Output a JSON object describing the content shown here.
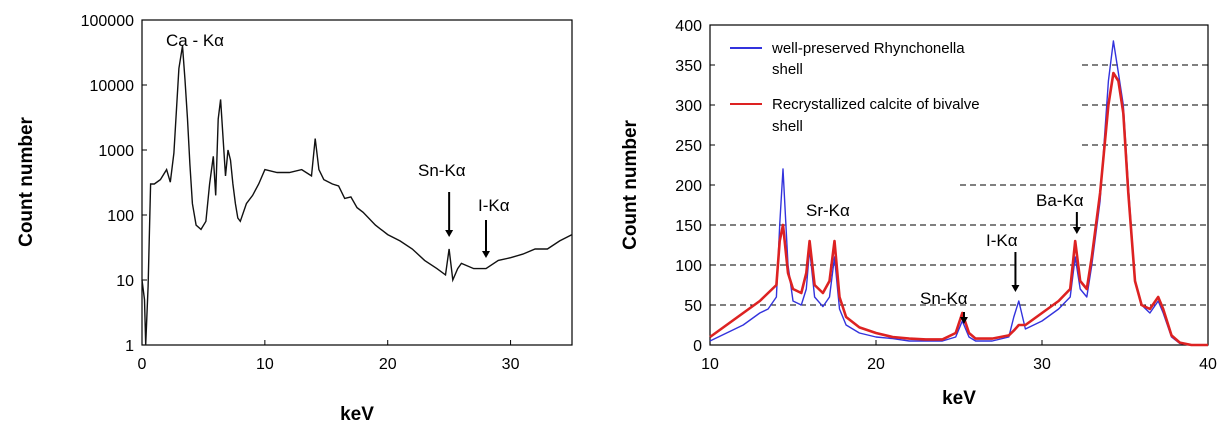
{
  "chart_data": [
    {
      "type": "line",
      "xlabel": "keV",
      "ylabel": "Count number",
      "xlim": [
        0,
        35
      ],
      "ylim": [
        1,
        100000
      ],
      "yscale": "log",
      "x_ticks": [
        "0",
        "10",
        "20",
        "30"
      ],
      "y_ticks": [
        "1",
        "10",
        "100",
        "1000",
        "10000",
        "100000"
      ],
      "grid": false,
      "line_color": "#111111",
      "annotations": [
        {
          "text": "Ca - Kα",
          "arrow": false
        },
        {
          "text": "Sn-Kα",
          "x": 25,
          "arrow": true
        },
        {
          "text": "I-Kα",
          "x": 28,
          "arrow": true
        }
      ],
      "series": [
        {
          "x": [
            0,
            0.2,
            0.3,
            0.5,
            0.7,
            1.0,
            1.5,
            2.0,
            2.3,
            2.6,
            3.0,
            3.3,
            3.5,
            3.7,
            3.9,
            4.1,
            4.4,
            4.8,
            5.2,
            5.5,
            5.8,
            6.0,
            6.2,
            6.4,
            6.6,
            6.8,
            7.0,
            7.2,
            7.4,
            7.6,
            7.8,
            8.0,
            8.5,
            9.0,
            9.5,
            10,
            11,
            12,
            13,
            13.8,
            14.1,
            14.4,
            14.8,
            15.5,
            16,
            16.5,
            17,
            17.5,
            18,
            19,
            20,
            21,
            22,
            23,
            24,
            24.7,
            25.0,
            25.3,
            25.7,
            26,
            27,
            28,
            29,
            30,
            31,
            32,
            33,
            34,
            35
          ],
          "y": [
            10,
            5,
            1,
            8,
            300,
            300,
            350,
            500,
            320,
            900,
            18000,
            40000,
            12000,
            3000,
            600,
            150,
            70,
            60,
            80,
            300,
            800,
            200,
            3000,
            6000,
            1500,
            400,
            1000,
            700,
            300,
            150,
            90,
            80,
            150,
            200,
            300,
            500,
            450,
            450,
            500,
            400,
            1500,
            500,
            350,
            300,
            280,
            180,
            190,
            130,
            110,
            70,
            50,
            40,
            30,
            20,
            15,
            12,
            30,
            10,
            15,
            18,
            15,
            15,
            20,
            22,
            25,
            30,
            30,
            40,
            50
          ]
        }
      ]
    },
    {
      "type": "line",
      "xlabel": "keV",
      "ylabel": "Count number",
      "xlim": [
        10,
        40
      ],
      "ylim": [
        0,
        400
      ],
      "x_ticks": [
        "10",
        "20",
        "30",
        "40"
      ],
      "y_ticks": [
        "0",
        "50",
        "100",
        "150",
        "200",
        "250",
        "300",
        "350",
        "400"
      ],
      "grid": "dashed-horizontal",
      "legend_position": "top-left",
      "annotations": [
        {
          "text": "Sr-Kα",
          "arrow": false
        },
        {
          "text": "Sn-Kα",
          "x": 25.3,
          "arrow": true
        },
        {
          "text": "I-Kα",
          "x": 28.4,
          "arrow": true
        },
        {
          "text": "Ba-Kα",
          "x": 32.1,
          "arrow": true
        }
      ],
      "series": [
        {
          "name": "well-preserved Rhynchonella shell",
          "name_lines": [
            "well-preserved Rhynchonella",
            "shell"
          ],
          "color": "#3333dd",
          "x": [
            10,
            11,
            12,
            13,
            13.5,
            14,
            14.2,
            14.4,
            14.7,
            15,
            15.5,
            15.8,
            16,
            16.3,
            16.8,
            17.2,
            17.5,
            17.8,
            18.2,
            19,
            20,
            21,
            22,
            23,
            24,
            24.8,
            25.2,
            25.6,
            26,
            27,
            28,
            28.3,
            28.6,
            29,
            30,
            31,
            31.7,
            32.0,
            32.3,
            32.7,
            33,
            33.5,
            34,
            34.3,
            34.6,
            34.9,
            35.2,
            35.6,
            36,
            36.5,
            37,
            37.3,
            37.8,
            38.3,
            39,
            40
          ],
          "y": [
            5,
            15,
            25,
            40,
            45,
            60,
            150,
            220,
            100,
            55,
            50,
            70,
            120,
            60,
            48,
            60,
            110,
            45,
            25,
            15,
            10,
            8,
            5,
            5,
            5,
            10,
            30,
            10,
            5,
            5,
            10,
            35,
            55,
            20,
            30,
            45,
            60,
            110,
            70,
            60,
            100,
            180,
            330,
            380,
            340,
            300,
            200,
            80,
            50,
            40,
            55,
            40,
            10,
            2,
            0,
            0
          ]
        },
        {
          "name": "Recrystallized calcite of bivalve shell",
          "name_lines": [
            "Recrystallized calcite of bivalve",
            "shell"
          ],
          "color": "#dd2222",
          "x": [
            10,
            11,
            12,
            13,
            13.5,
            14,
            14.2,
            14.4,
            14.7,
            15,
            15.5,
            15.8,
            16,
            16.3,
            16.8,
            17.2,
            17.5,
            17.8,
            18.2,
            19,
            20,
            21,
            22,
            23,
            24,
            24.8,
            25.2,
            25.6,
            26,
            27,
            28,
            28.3,
            28.6,
            29,
            30,
            31,
            31.7,
            32.0,
            32.3,
            32.7,
            33,
            33.5,
            34,
            34.3,
            34.6,
            34.9,
            35.2,
            35.6,
            36,
            36.5,
            37,
            37.3,
            37.8,
            38.3,
            39,
            40
          ],
          "y": [
            10,
            25,
            40,
            55,
            65,
            75,
            130,
            150,
            90,
            70,
            65,
            90,
            130,
            75,
            65,
            80,
            130,
            60,
            35,
            22,
            15,
            10,
            8,
            7,
            7,
            15,
            40,
            15,
            8,
            8,
            12,
            18,
            25,
            25,
            40,
            55,
            70,
            130,
            80,
            70,
            110,
            190,
            300,
            340,
            330,
            290,
            190,
            80,
            50,
            45,
            60,
            45,
            12,
            3,
            0,
            0
          ]
        }
      ]
    }
  ]
}
